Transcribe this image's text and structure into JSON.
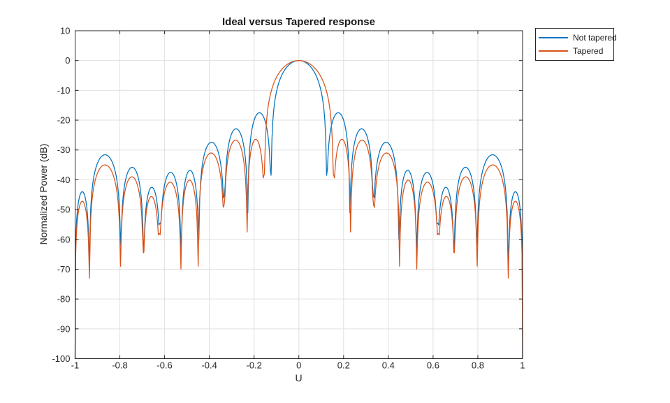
{
  "figure": {
    "title": "Ideal versus Tapered response",
    "background": "#ffffff"
  },
  "axes": {
    "xlabel": "U",
    "ylabel": "Normalized Power (dB)",
    "xlim": [
      -1,
      1
    ],
    "ylim": [
      -100,
      10
    ],
    "x_tick_values": [
      -1,
      -0.8,
      -0.6,
      -0.4,
      -0.2,
      0,
      0.2,
      0.4,
      0.6,
      0.8,
      1
    ],
    "x_tick_labels": [
      "-1",
      "-0.8",
      "-0.6",
      "-0.4",
      "-0.2",
      "0",
      "0.2",
      "0.4",
      "0.6",
      "0.8",
      "1"
    ],
    "y_tick_values": [
      10,
      0,
      -10,
      -20,
      -30,
      -40,
      -50,
      -60,
      -70,
      -80,
      -90,
      -100
    ],
    "y_tick_labels": [
      "10",
      "0",
      "-10",
      "-20",
      "-30",
      "-40",
      "-50",
      "-60",
      "-70",
      "-80",
      "-90",
      "-100"
    ],
    "grid": true,
    "colors": {
      "axis": "#262626",
      "grid": "#e0e0e0",
      "tick_label": "#262626",
      "title": "#1a1a1a"
    }
  },
  "legend": {
    "position": "northeast-outside",
    "border_color": "#262626",
    "entries": [
      {
        "label": "Not tapered",
        "color": "#0072BD"
      },
      {
        "label": "Tapered",
        "color": "#D95319"
      }
    ]
  },
  "chart_data": {
    "type": "line",
    "title": "Ideal versus Tapered response",
    "xlabel": "U",
    "ylabel": "Normalized Power (dB)",
    "xlim": [
      -1,
      1
    ],
    "ylim": [
      -100,
      10
    ],
    "grid": true,
    "legend_position": "northeast outside",
    "description": "Array power pattern versus U. Both curves peak at 0 dB at U=0 and are symmetric about U=0; both plunge to -100 dB at U=-1 and U=+1. Lobe data (dB, read from plot) is listed for U>0 and mirrored for U<0.",
    "series": [
      {
        "name": "Not tapered",
        "color": "#0072BD",
        "main_lobe": {
          "peak_u": 0,
          "peak_db": 0,
          "first_null_u": 0.124
        },
        "null_u": [
          0.124,
          0.228,
          0.333,
          0.447,
          0.526,
          0.62,
          0.694,
          0.796,
          0.936,
          1.0
        ],
        "null_db": [
          -38.5,
          -51.0,
          -45.5,
          -60.0,
          -63.5,
          -54.5,
          -63.5,
          -62.0,
          -67.0,
          -100
        ],
        "sidelobe_peak_u": [
          0.167,
          0.274,
          0.375,
          0.483,
          0.572,
          0.656,
          0.748,
          0.863,
          0.97
        ],
        "sidelobe_peak_db": [
          -17.5,
          -22.9,
          -27.4,
          -36.8,
          -37.5,
          -42.5,
          -35.8,
          -31.6,
          -44.0
        ],
        "edge_db_at_u1": -100
      },
      {
        "name": "Tapered",
        "color": "#D95319",
        "main_lobe": {
          "peak_u": 0,
          "peak_db": 0,
          "first_null_u": 0.154
        },
        "null_u": [
          0.154,
          0.231,
          0.334,
          0.45,
          0.527,
          0.623,
          0.695,
          0.797,
          0.936,
          1.0
        ],
        "null_db": [
          -38.0,
          -57.5,
          -48.5,
          -69.0,
          -70.0,
          -58.0,
          -64.5,
          -69.0,
          -73.0,
          -100
        ],
        "sidelobe_peak_u": [
          0.181,
          0.277,
          0.377,
          0.486,
          0.573,
          0.657,
          0.749,
          0.864,
          0.972
        ],
        "sidelobe_peak_db": [
          -26.4,
          -26.7,
          -31.0,
          -40.1,
          -40.8,
          -45.6,
          -39.0,
          -35.0,
          -47.2
        ],
        "edge_db_at_u1": -100
      }
    ]
  }
}
